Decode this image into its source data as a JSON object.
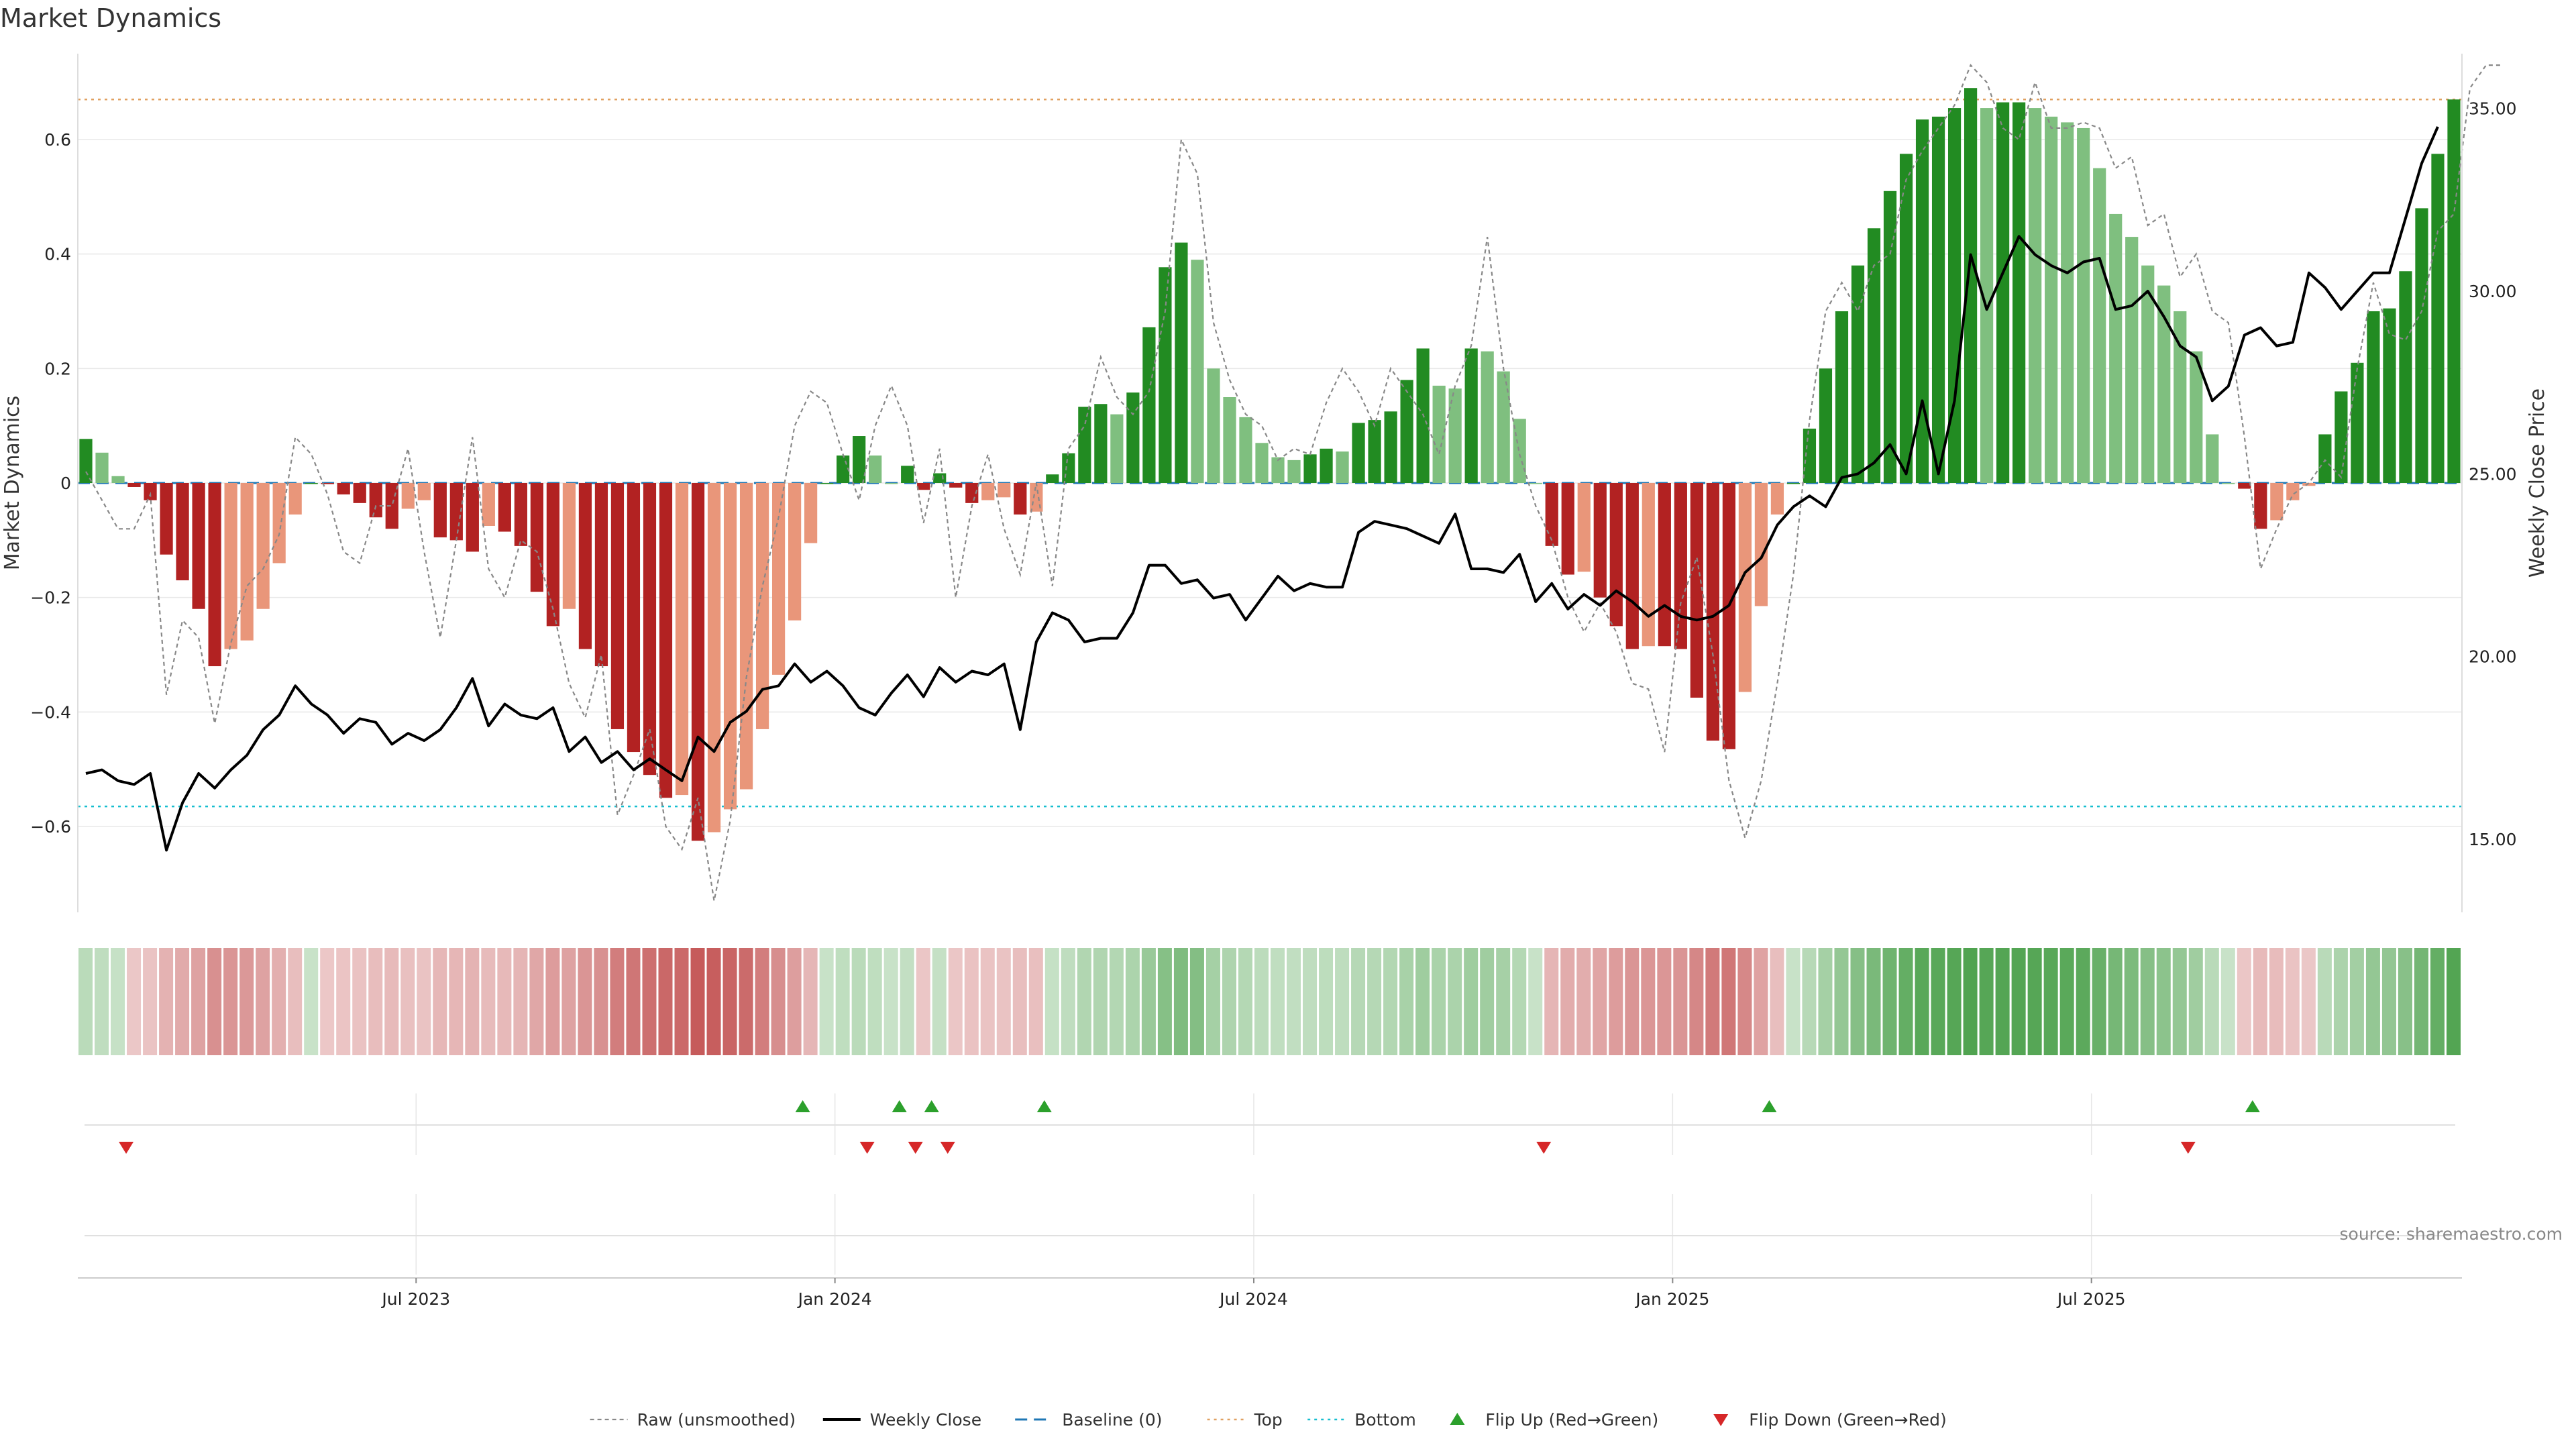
{
  "chart_data": {
    "type": "bar",
    "title": "Market Dynamics",
    "ylabel_left": "Market Dynamics",
    "ylabel_right": "Weekly Close Price",
    "ylim_left": [
      -0.75,
      0.75
    ],
    "ylim_right": [
      13.0,
      36.5
    ],
    "yticks_left": [
      {
        "value": 0.6,
        "label": "0.6"
      },
      {
        "value": 0.4,
        "label": "0.4"
      },
      {
        "value": 0.2,
        "label": "0.2"
      },
      {
        "value": 0,
        "label": "0"
      },
      {
        "value": -0.2,
        "label": "−0.2"
      },
      {
        "value": -0.4,
        "label": "−0.4"
      },
      {
        "value": -0.6,
        "label": "−0.6"
      }
    ],
    "yticks_right": [
      {
        "value": 35,
        "label": "35.00"
      },
      {
        "value": 30,
        "label": "30.00"
      },
      {
        "value": 25,
        "label": "25.00"
      },
      {
        "value": 20,
        "label": "20.00"
      },
      {
        "value": 15,
        "label": "15.00"
      }
    ],
    "xticks": [
      {
        "index": 21,
        "label": "Jul 2023"
      },
      {
        "index": 47,
        "label": "Jan 2024"
      },
      {
        "index": 73,
        "label": "Jul 2024"
      },
      {
        "index": 99,
        "label": "Jan 2025"
      },
      {
        "index": 125,
        "label": "Jul 2025"
      }
    ],
    "top_line": 0.67,
    "bottom_line": -0.565,
    "baseline": 0,
    "colors": {
      "strong_green": "#228b22",
      "light_green": "#7fbf7f",
      "strong_red": "#b22222",
      "light_red": "#e9967a",
      "close": "#000000",
      "raw": "#888888",
      "baseline": "#1f77b4",
      "top": "#e0a060",
      "bottom": "#17becf",
      "flip_up": "#2ca02c",
      "flip_down": "#d62728"
    },
    "series": [
      {
        "name": "Market Dynamics",
        "values": [
          0.077,
          0.053,
          0.012,
          -0.007,
          -0.03,
          -0.125,
          -0.17,
          -0.22,
          -0.32,
          -0.29,
          -0.275,
          -0.22,
          -0.14,
          -0.055,
          0,
          -0.002,
          -0.02,
          -0.035,
          -0.06,
          -0.08,
          -0.045,
          -0.03,
          -0.095,
          -0.1,
          -0.12,
          -0.075,
          -0.085,
          -0.11,
          -0.19,
          -0.25,
          -0.22,
          -0.29,
          -0.32,
          -0.43,
          -0.47,
          -0.51,
          -0.55,
          -0.545,
          -0.625,
          -0.61,
          -0.57,
          -0.535,
          -0.43,
          -0.335,
          -0.24,
          -0.105,
          0,
          0.048,
          0.082,
          0.048,
          0,
          0.03,
          -0.012,
          0.017,
          -0.008,
          -0.035,
          -0.03,
          -0.025,
          -0.055,
          -0.05,
          0.015,
          0.052,
          0.133,
          0.138,
          0.12,
          0.158,
          0.272,
          0.377,
          0.42,
          0.39,
          0.2,
          0.15,
          0.115,
          0.07,
          0.045,
          0.04,
          0.05,
          0.06,
          0.055,
          0.105,
          0.11,
          0.125,
          0.18,
          0.235,
          0.17,
          0.165,
          0.235,
          0.23,
          0.195,
          0.112,
          0,
          -0.11,
          -0.16,
          -0.155,
          -0.2,
          -0.25,
          -0.29,
          -0.285,
          -0.285,
          -0.29,
          -0.375,
          -0.45,
          -0.465,
          -0.365,
          -0.215,
          -0.055,
          0,
          0.095,
          0.2,
          0.3,
          0.38,
          0.445,
          0.51,
          0.575,
          0.635,
          0.64,
          0.655,
          0.69,
          0.655,
          0.665,
          0.665,
          0.655,
          0.64,
          0.63,
          0.62,
          0.55,
          0.47,
          0.43,
          0.38,
          0.345,
          0.3,
          0.23,
          0.085,
          0,
          -0.01,
          -0.08,
          -0.065,
          -0.03,
          -0.005,
          0.085,
          0.16,
          0.21,
          0.3,
          0.305,
          0.37,
          0.48,
          0.575,
          0.67
        ]
      },
      {
        "name": "Raw (unsmoothed)",
        "values": [
          0.02,
          -0.03,
          -0.08,
          -0.08,
          -0.02,
          -0.37,
          -0.24,
          -0.27,
          -0.42,
          -0.28,
          -0.18,
          -0.15,
          -0.09,
          0.08,
          0.05,
          -0.02,
          -0.12,
          -0.14,
          -0.04,
          -0.04,
          0.06,
          -0.12,
          -0.27,
          -0.1,
          0.08,
          -0.15,
          -0.2,
          -0.1,
          -0.12,
          -0.22,
          -0.35,
          -0.41,
          -0.3,
          -0.58,
          -0.51,
          -0.43,
          -0.6,
          -0.64,
          -0.55,
          -0.73,
          -0.59,
          -0.34,
          -0.18,
          -0.06,
          0.1,
          0.16,
          0.14,
          0.05,
          -0.03,
          0.1,
          0.17,
          0.1,
          -0.07,
          0.06,
          -0.2,
          -0.04,
          0.05,
          -0.08,
          -0.16,
          0.0,
          -0.18,
          0.06,
          0.1,
          0.22,
          0.15,
          0.12,
          0.16,
          0.3,
          0.6,
          0.54,
          0.28,
          0.18,
          0.12,
          0.1,
          0.04,
          0.06,
          0.05,
          0.14,
          0.2,
          0.16,
          0.1,
          0.2,
          0.16,
          0.12,
          0.05,
          0.17,
          0.24,
          0.43,
          0.2,
          0.05,
          -0.04,
          -0.1,
          -0.2,
          -0.26,
          -0.21,
          -0.26,
          -0.35,
          -0.36,
          -0.47,
          -0.21,
          -0.13,
          -0.3,
          -0.52,
          -0.62,
          -0.52,
          -0.35,
          -0.16,
          0.11,
          0.3,
          0.35,
          0.3,
          0.38,
          0.4,
          0.53,
          0.58,
          0.62,
          0.66,
          0.73,
          0.7,
          0.62,
          0.6,
          0.7,
          0.62,
          0.62,
          0.63,
          0.62,
          0.55,
          0.57,
          0.45,
          0.47,
          0.36,
          0.4,
          0.3,
          0.28,
          0.08,
          -0.15,
          -0.08,
          -0.02,
          0.0,
          0.04,
          0.01,
          0.2,
          0.35,
          0.26,
          0.25,
          0.3,
          0.44,
          0.47,
          0.69,
          0.73,
          0.73
        ]
      },
      {
        "name": "Weekly Close",
        "values": [
          16.8,
          16.9,
          16.6,
          16.5,
          16.8,
          14.7,
          16.0,
          16.8,
          16.4,
          16.9,
          17.3,
          18.0,
          18.4,
          19.2,
          18.7,
          18.4,
          17.9,
          18.3,
          18.2,
          17.6,
          17.9,
          17.7,
          18.0,
          18.6,
          19.4,
          18.1,
          18.7,
          18.4,
          18.3,
          18.6,
          17.4,
          17.8,
          17.1,
          17.4,
          16.9,
          17.2,
          16.9,
          16.6,
          17.8,
          17.4,
          18.2,
          18.5,
          19.1,
          19.2,
          19.8,
          19.3,
          19.6,
          19.2,
          18.6,
          18.4,
          19.0,
          19.5,
          18.9,
          19.7,
          19.3,
          19.6,
          19.5,
          19.8,
          18.0,
          20.4,
          21.2,
          21.0,
          20.4,
          20.5,
          20.5,
          21.2,
          22.5,
          22.5,
          22.0,
          22.1,
          21.6,
          21.7,
          21.0,
          21.6,
          22.2,
          21.8,
          22.0,
          21.9,
          21.9,
          23.4,
          23.7,
          23.6,
          23.5,
          23.3,
          23.1,
          23.9,
          22.4,
          22.4,
          22.3,
          22.8,
          21.5,
          22.0,
          21.3,
          21.7,
          21.4,
          21.8,
          21.5,
          21.1,
          21.4,
          21.1,
          21.0,
          21.1,
          21.4,
          22.3,
          22.7,
          23.6,
          24.1,
          24.4,
          24.1,
          24.9,
          25.0,
          25.3,
          25.8,
          25.0,
          27.0,
          25.0,
          27.0,
          31.0,
          29.5,
          30.5,
          31.5,
          31.0,
          30.7,
          30.5,
          30.8,
          30.9,
          29.5,
          29.6,
          30.0,
          29.3,
          28.5,
          28.2,
          27.0,
          27.4,
          28.8,
          29.0,
          28.5,
          28.6,
          30.5,
          30.1,
          29.5,
          30.0,
          30.5,
          30.5,
          32.0,
          33.5,
          34.5
        ]
      }
    ],
    "flip_up_indices": [
      45,
      51,
      53,
      60,
      105,
      135
    ],
    "flip_down_indices": [
      3,
      49,
      52,
      54,
      91,
      131
    ],
    "heatmap": "same as Market Dynamics series (green for positive, red for negative, intensity by magnitude)",
    "legend": [
      {
        "key": "raw",
        "label": "Raw (unsmoothed)"
      },
      {
        "key": "close",
        "label": "Weekly Close"
      },
      {
        "key": "baseline",
        "label": "Baseline (0)"
      },
      {
        "key": "top",
        "label": "Top"
      },
      {
        "key": "bottom",
        "label": "Bottom"
      },
      {
        "key": "flip_up",
        "label": "Flip Up (Red→Green)"
      },
      {
        "key": "flip_down",
        "label": "Flip Down (Green→Red)"
      }
    ],
    "legend_position": "bottom-center",
    "source": "source: sharemaestro.com"
  }
}
